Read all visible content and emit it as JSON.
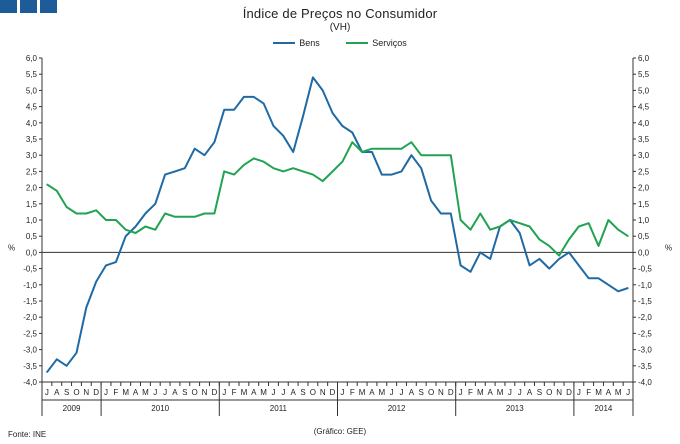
{
  "header": {
    "logo_squares": 3,
    "title": "Índice de Preços no Consumidor",
    "subtitle": "(VH)"
  },
  "legend": [
    {
      "name": "Bens",
      "color": "#1f6aa5"
    },
    {
      "name": "Serviços",
      "color": "#21a353"
    }
  ],
  "footer": {
    "source": "Fonte: INE",
    "credit": "(Gráfico: GEE)"
  },
  "chart_data": {
    "type": "line",
    "title": "Índice de Preços no Consumidor",
    "subtitle": "(VH)",
    "ylabel_left": "%",
    "ylabel_right": "%",
    "ylim": [
      -4.0,
      6.0
    ],
    "ytick_step": 0.5,
    "yticks": [
      "6,0",
      "5,5",
      "5,0",
      "4,5",
      "4,0",
      "3,5",
      "3,0",
      "2,5",
      "2,0",
      "1,5",
      "1,0",
      "0,5",
      "0,0",
      "-0,5",
      "-1,0",
      "-1,5",
      "-2,0",
      "-2,5",
      "-3,0",
      "-3,5",
      "-4,0"
    ],
    "grid": false,
    "month_labels": [
      "J",
      "A",
      "S",
      "O",
      "N",
      "D",
      "J",
      "F",
      "M",
      "A",
      "M",
      "J",
      "J",
      "A",
      "S",
      "O",
      "N",
      "D",
      "J",
      "F",
      "M",
      "A",
      "M",
      "J",
      "J",
      "A",
      "S",
      "O",
      "N",
      "D",
      "J",
      "F",
      "M",
      "A",
      "M",
      "J",
      "J",
      "A",
      "S",
      "O",
      "N",
      "D",
      "J",
      "F",
      "M",
      "A",
      "M",
      "J",
      "J",
      "A",
      "S",
      "O",
      "N",
      "D",
      "J",
      "F",
      "M",
      "A",
      "M",
      "J"
    ],
    "years": [
      {
        "label": "2009",
        "start": 0,
        "count": 6
      },
      {
        "label": "2010",
        "start": 6,
        "count": 12
      },
      {
        "label": "2011",
        "start": 18,
        "count": 12
      },
      {
        "label": "2012",
        "start": 30,
        "count": 12
      },
      {
        "label": "2013",
        "start": 42,
        "count": 12
      },
      {
        "label": "2014",
        "start": 54,
        "count": 6
      }
    ],
    "series": [
      {
        "name": "Bens",
        "color": "#1f6aa5",
        "values": [
          -3.7,
          -3.3,
          -3.5,
          -3.1,
          -1.7,
          -0.9,
          -0.4,
          -0.3,
          0.5,
          0.8,
          1.2,
          1.5,
          2.4,
          2.5,
          2.6,
          3.2,
          3.0,
          3.4,
          4.4,
          4.4,
          4.8,
          4.8,
          4.6,
          3.9,
          3.6,
          3.1,
          4.2,
          5.4,
          5.0,
          4.3,
          3.9,
          3.7,
          3.1,
          3.1,
          2.4,
          2.4,
          2.5,
          3.0,
          2.6,
          1.6,
          1.2,
          1.2,
          -0.4,
          -0.6,
          0.0,
          -0.2,
          0.8,
          1.0,
          0.6,
          -0.4,
          -0.2,
          -0.5,
          -0.2,
          0.0,
          -0.4,
          -0.8,
          -0.8,
          -1.0,
          -1.2,
          -1.1
        ]
      },
      {
        "name": "Serviços",
        "color": "#21a353",
        "values": [
          2.1,
          1.9,
          1.4,
          1.2,
          1.2,
          1.3,
          1.0,
          1.0,
          0.7,
          0.6,
          0.8,
          0.7,
          1.2,
          1.1,
          1.1,
          1.1,
          1.2,
          1.2,
          2.5,
          2.4,
          2.7,
          2.9,
          2.8,
          2.6,
          2.5,
          2.6,
          2.5,
          2.4,
          2.2,
          2.5,
          2.8,
          3.4,
          3.1,
          3.2,
          3.2,
          3.2,
          3.2,
          3.4,
          3.0,
          3.0,
          3.0,
          3.0,
          1.0,
          0.7,
          1.2,
          0.7,
          0.8,
          1.0,
          0.9,
          0.8,
          0.4,
          0.2,
          -0.1,
          0.4,
          0.8,
          0.9,
          0.2,
          1.0,
          0.7,
          0.5
        ]
      }
    ]
  }
}
